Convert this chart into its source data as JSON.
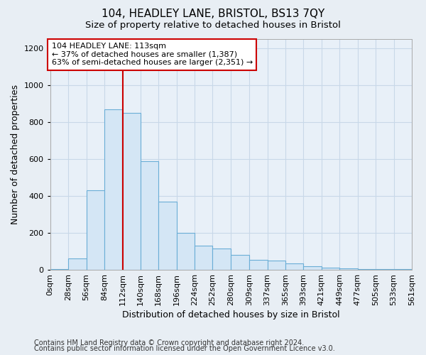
{
  "title": "104, HEADLEY LANE, BRISTOL, BS13 7QY",
  "subtitle": "Size of property relative to detached houses in Bristol",
  "xlabel": "Distribution of detached houses by size in Bristol",
  "ylabel": "Number of detached properties",
  "bar_edges": [
    0,
    28,
    56,
    84,
    112,
    140,
    168,
    196,
    224,
    252,
    280,
    309,
    337,
    365,
    393,
    421,
    449,
    477,
    505,
    533,
    561
  ],
  "bar_heights": [
    5,
    60,
    430,
    870,
    850,
    590,
    370,
    200,
    130,
    115,
    80,
    55,
    50,
    35,
    20,
    10,
    8,
    5,
    3,
    5
  ],
  "bar_color": "#d4e6f5",
  "bar_edgecolor": "#6aaed6",
  "vline_x": 113,
  "vline_color": "#cc0000",
  "annotation_text": "104 HEADLEY LANE: 113sqm\n← 37% of detached houses are smaller (1,387)\n63% of semi-detached houses are larger (2,351) →",
  "annotation_box_color": "#ffffff",
  "annotation_box_edgecolor": "#cc0000",
  "ylim": [
    0,
    1250
  ],
  "yticks": [
    0,
    200,
    400,
    600,
    800,
    1000,
    1200
  ],
  "tick_labels": [
    "0sqm",
    "28sqm",
    "56sqm",
    "84sqm",
    "112sqm",
    "140sqm",
    "168sqm",
    "196sqm",
    "224sqm",
    "252sqm",
    "280sqm",
    "309sqm",
    "337sqm",
    "365sqm",
    "393sqm",
    "421sqm",
    "449sqm",
    "477sqm",
    "505sqm",
    "533sqm",
    "561sqm"
  ],
  "footer1": "Contains HM Land Registry data © Crown copyright and database right 2024.",
  "footer2": "Contains public sector information licensed under the Open Government Licence v3.0.",
  "bg_color": "#e8eef4",
  "plot_bg_color": "#e8f0f8",
  "grid_color": "#c8d8e8",
  "title_fontsize": 11,
  "subtitle_fontsize": 9.5,
  "label_fontsize": 9,
  "tick_fontsize": 8,
  "footer_fontsize": 7,
  "ann_fontsize": 8
}
